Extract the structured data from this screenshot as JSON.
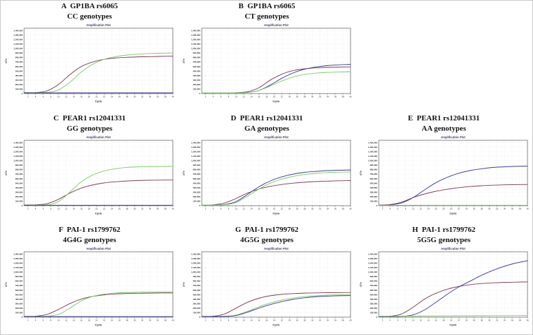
{
  "figure": {
    "plot_title": "Amplification Plot",
    "xlabel": "Cycle",
    "ylabel": "ΔRn"
  },
  "colors": {
    "green": "#7ccc66",
    "maroon": "#7a3b55",
    "blue": "#3a3a99",
    "grid": "#e2e6e2",
    "frame": "#555555",
    "tick_text": "#222222",
    "plot_title_text": "#3b3b66"
  },
  "axis": {
    "xlim": [
      1,
      40
    ],
    "ylim": [
      0,
      1450000
    ],
    "xticks": [
      2,
      4,
      6,
      8,
      10,
      12,
      14,
      16,
      18,
      20,
      22,
      24,
      26,
      28,
      30,
      32,
      34,
      36,
      38,
      40
    ],
    "yticks": [
      0,
      100000,
      200000,
      300000,
      400000,
      500000,
      600000,
      700000,
      800000,
      900000,
      1000000,
      1100000,
      1200000,
      1300000,
      1400000
    ],
    "grid": true,
    "legend": "none"
  },
  "chart_data": [
    {
      "type": "line",
      "row": 1,
      "col": 1,
      "title_line1": "A  GP1BA rs6065",
      "title_line2": "CC genotypes",
      "plot_title": "Amplification Plot",
      "xlabel": "Cycle",
      "ylabel": "ΔRn",
      "x": [
        1,
        4,
        7,
        10,
        13,
        16,
        19,
        22,
        25,
        28,
        31,
        34,
        37,
        40
      ],
      "series": [
        {
          "name": "maroon-curve",
          "color": "maroon",
          "values": [
            20000,
            20000,
            60000,
            200000,
            420000,
            600000,
            700000,
            760000,
            790000,
            805000,
            815000,
            820000,
            825000,
            830000
          ]
        },
        {
          "name": "green-curve",
          "color": "green",
          "values": [
            20000,
            20000,
            25000,
            80000,
            250000,
            480000,
            650000,
            760000,
            820000,
            855000,
            875000,
            888000,
            895000,
            900000
          ]
        },
        {
          "name": "blue-curve",
          "color": "blue",
          "values": [
            15000,
            15000,
            15000,
            15000,
            15000,
            15000,
            15000,
            15000,
            15000,
            15000,
            15000,
            15000,
            15000,
            15000
          ]
        }
      ]
    },
    {
      "type": "line",
      "row": 1,
      "col": 2,
      "title_line1": "B  GP1BA rs6065",
      "title_line2": "CT genotypes",
      "plot_title": "Amplification Plot",
      "xlabel": "Cycle",
      "ylabel": "ΔRn",
      "x": [
        1,
        4,
        7,
        10,
        13,
        16,
        19,
        22,
        25,
        28,
        31,
        34,
        37,
        40
      ],
      "series": [
        {
          "name": "maroon-curve",
          "color": "maroon",
          "values": [
            15000,
            15000,
            15000,
            18000,
            40000,
            130000,
            300000,
            430000,
            510000,
            550000,
            570000,
            580000,
            588000,
            592000
          ]
        },
        {
          "name": "blue-curve",
          "color": "blue",
          "values": [
            15000,
            15000,
            15000,
            15000,
            25000,
            70000,
            190000,
            340000,
            460000,
            540000,
            590000,
            620000,
            638000,
            648000
          ]
        },
        {
          "name": "green-curve",
          "color": "green",
          "values": [
            15000,
            15000,
            15000,
            16000,
            25000,
            70000,
            170000,
            280000,
            370000,
            425000,
            455000,
            470000,
            478000,
            482000
          ]
        }
      ]
    },
    {
      "type": "line",
      "row": 2,
      "col": 1,
      "title_line1": "C  PEAR1 rs12041331",
      "title_line2": "GG genotypes",
      "plot_title": "Amplification Plot",
      "xlabel": "Cycle",
      "ylabel": "ΔRn",
      "x": [
        1,
        4,
        7,
        10,
        13,
        16,
        19,
        22,
        25,
        28,
        31,
        34,
        37,
        40
      ],
      "series": [
        {
          "name": "maroon-curve",
          "color": "maroon",
          "values": [
            18000,
            20000,
            45000,
            140000,
            280000,
            390000,
            460000,
            505000,
            530000,
            548000,
            558000,
            565000,
            568000,
            570000
          ]
        },
        {
          "name": "green-curve",
          "color": "green",
          "values": [
            15000,
            15000,
            20000,
            90000,
            300000,
            530000,
            680000,
            770000,
            820000,
            850000,
            862000,
            868000,
            870000,
            872000
          ]
        },
        {
          "name": "blue-curve",
          "color": "blue",
          "values": [
            10000,
            10000,
            10000,
            10000,
            10000,
            10000,
            10000,
            10000,
            10000,
            10000,
            10000,
            10000,
            10000,
            10000
          ]
        }
      ]
    },
    {
      "type": "line",
      "row": 2,
      "col": 2,
      "title_line1": "D  PEAR1 rs12041331",
      "title_line2": "GA genotypes",
      "plot_title": "Amplification Plot",
      "xlabel": "Cycle",
      "ylabel": "ΔRn",
      "x": [
        1,
        4,
        7,
        10,
        13,
        16,
        19,
        22,
        25,
        28,
        31,
        34,
        37,
        40
      ],
      "series": [
        {
          "name": "maroon-curve",
          "color": "maroon",
          "values": [
            15000,
            20000,
            60000,
            160000,
            280000,
            370000,
            430000,
            470000,
            500000,
            520000,
            535000,
            545000,
            552000,
            558000
          ]
        },
        {
          "name": "blue-curve",
          "color": "blue",
          "values": [
            15000,
            15000,
            25000,
            90000,
            250000,
            420000,
            550000,
            640000,
            700000,
            740000,
            762000,
            778000,
            786000,
            792000
          ]
        },
        {
          "name": "green-curve",
          "color": "green",
          "values": [
            15000,
            15000,
            20000,
            70000,
            210000,
            370000,
            500000,
            590000,
            650000,
            692000,
            718000,
            735000,
            743000,
            748000
          ]
        }
      ]
    },
    {
      "type": "line",
      "row": 2,
      "col": 3,
      "title_line1": "E  PEAR1 rs12041331",
      "title_line2": "AA genotypes",
      "plot_title": "Amplification Plot",
      "xlabel": "Cycle",
      "ylabel": "ΔRn",
      "x": [
        1,
        4,
        7,
        10,
        13,
        16,
        19,
        22,
        25,
        28,
        31,
        34,
        37,
        40
      ],
      "series": [
        {
          "name": "blue-curve",
          "color": "blue",
          "values": [
            15000,
            20000,
            60000,
            180000,
            350000,
            510000,
            630000,
            720000,
            780000,
            820000,
            848000,
            862000,
            872000,
            878000
          ]
        },
        {
          "name": "maroon-curve",
          "color": "maroon",
          "values": [
            15000,
            25000,
            80000,
            180000,
            260000,
            320000,
            365000,
            400000,
            425000,
            442000,
            455000,
            462000,
            467000,
            470000
          ]
        },
        {
          "name": "green-curve",
          "color": "green",
          "values": [
            10000,
            10000,
            10000,
            10000,
            10000,
            10000,
            10000,
            10000,
            10000,
            10000,
            10000,
            10000,
            10000,
            10000
          ]
        }
      ]
    },
    {
      "type": "line",
      "row": 3,
      "col": 1,
      "title_line1": "F  PAI-1 rs1799762",
      "title_line2": "4G4G genotypes",
      "plot_title": "Amplification Plot",
      "xlabel": "Cycle",
      "ylabel": "ΔRn",
      "x": [
        1,
        4,
        7,
        10,
        13,
        16,
        19,
        22,
        25,
        28,
        31,
        34,
        37,
        40
      ],
      "series": [
        {
          "name": "maroon-curve",
          "color": "maroon",
          "values": [
            18000,
            20000,
            60000,
            170000,
            300000,
            400000,
            460000,
            495000,
            515000,
            525000,
            530000,
            533000,
            535000,
            536000
          ]
        },
        {
          "name": "green-curve",
          "color": "green",
          "values": [
            15000,
            15000,
            20000,
            60000,
            200000,
            360000,
            460000,
            510000,
            535000,
            548000,
            553000,
            556000,
            557000,
            558000
          ]
        },
        {
          "name": "blue-curve",
          "color": "blue",
          "values": [
            12000,
            12000,
            12000,
            12000,
            12000,
            12000,
            12000,
            12000,
            12000,
            12000,
            12000,
            12000,
            12000,
            12000
          ]
        }
      ]
    },
    {
      "type": "line",
      "row": 3,
      "col": 2,
      "title_line1": "G  PAI-1 rs1799762",
      "title_line2": "4G5G genotypes",
      "plot_title": "Amplification Plot",
      "xlabel": "Cycle",
      "ylabel": "ΔRn",
      "x": [
        1,
        4,
        7,
        10,
        13,
        16,
        19,
        22,
        25,
        28,
        31,
        34,
        37,
        40
      ],
      "series": [
        {
          "name": "maroon-curve",
          "color": "maroon",
          "values": [
            15000,
            20000,
            70000,
            200000,
            330000,
            420000,
            475000,
            505000,
            522000,
            532000,
            538000,
            542000,
            544000,
            546000
          ]
        },
        {
          "name": "green-curve",
          "color": "green",
          "values": [
            15000,
            15000,
            18000,
            45000,
            130000,
            230000,
            315000,
            380000,
            425000,
            455000,
            475000,
            488000,
            495000,
            500000
          ]
        },
        {
          "name": "blue-curve",
          "color": "blue",
          "values": [
            15000,
            15000,
            15000,
            35000,
            110000,
            200000,
            280000,
            345000,
            395000,
            430000,
            452000,
            466000,
            474000,
            480000
          ]
        }
      ]
    },
    {
      "type": "line",
      "row": 3,
      "col": 3,
      "title_line1": "H  PAI-1 rs1799762",
      "title_line2": "5G5G genotypes",
      "plot_title": "Amplification Plot",
      "xlabel": "Cycle",
      "ylabel": "ΔRn",
      "x": [
        1,
        4,
        7,
        10,
        13,
        16,
        19,
        22,
        25,
        28,
        31,
        34,
        37,
        40
      ],
      "series": [
        {
          "name": "maroon-curve",
          "color": "maroon",
          "values": [
            18000,
            22000,
            70000,
            220000,
            400000,
            530000,
            620000,
            680000,
            720000,
            745000,
            760000,
            770000,
            776000,
            780000
          ]
        },
        {
          "name": "blue-curve",
          "color": "blue",
          "values": [
            15000,
            15000,
            18000,
            50000,
            160000,
            330000,
            510000,
            670000,
            800000,
            930000,
            1040000,
            1130000,
            1200000,
            1250000
          ]
        },
        {
          "name": "green-curve",
          "color": "green",
          "values": [
            20000,
            20000,
            20000,
            22000,
            24000,
            26000,
            28000,
            30000,
            31000,
            32000,
            33000,
            34000,
            35000,
            36000
          ]
        }
      ]
    }
  ]
}
